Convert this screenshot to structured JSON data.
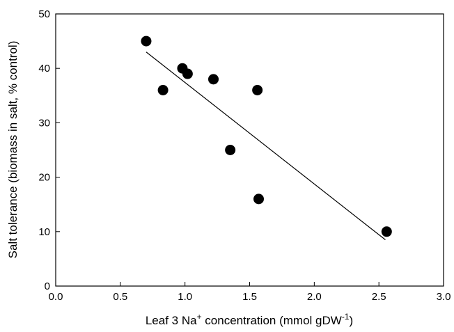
{
  "chart_data": {
    "type": "scatter",
    "xlabel_parts": {
      "pre": "Leaf 3 Na",
      "sup1": "+",
      "mid": " concentration (mmol gDW",
      "sup2": "-1",
      "post": ")"
    },
    "ylabel": "Salt tolerance (biomass in salt, % control)",
    "xlim": [
      0.0,
      3.0
    ],
    "ylim": [
      0,
      50
    ],
    "xticks": [
      "0.0",
      "0.5",
      "1.0",
      "1.5",
      "2.0",
      "2.5",
      "3.0"
    ],
    "yticks": [
      "0",
      "10",
      "20",
      "30",
      "40",
      "50"
    ],
    "grid": false,
    "points": [
      {
        "x": 0.7,
        "y": 45
      },
      {
        "x": 0.83,
        "y": 36
      },
      {
        "x": 0.98,
        "y": 40
      },
      {
        "x": 1.02,
        "y": 39
      },
      {
        "x": 1.22,
        "y": 38
      },
      {
        "x": 1.35,
        "y": 25
      },
      {
        "x": 1.56,
        "y": 36
      },
      {
        "x": 1.57,
        "y": 16
      },
      {
        "x": 2.56,
        "y": 10
      }
    ],
    "regression_line": {
      "x1": 0.7,
      "y1": 43,
      "x2": 2.55,
      "y2": 8.5
    }
  }
}
